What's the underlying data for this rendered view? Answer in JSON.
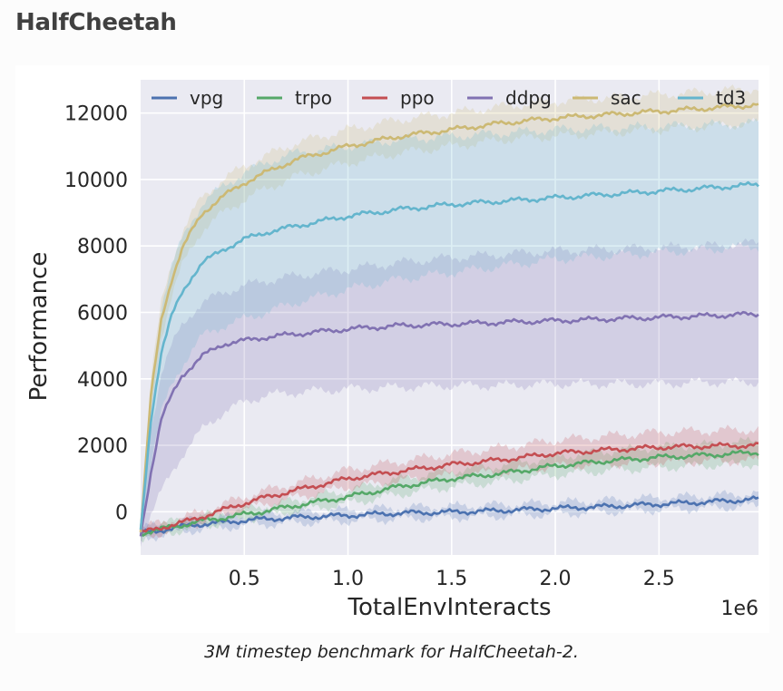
{
  "page": {
    "heading": "HalfCheetah",
    "caption": "3M timestep benchmark for HalfCheetah-2."
  },
  "chart_data": {
    "type": "line",
    "title": "",
    "xlabel": "TotalEnvInteracts",
    "ylabel": "Performance",
    "x_scale_label": "1e6",
    "xlim": [
      0,
      2.98
    ],
    "ylim": [
      -1300,
      13000
    ],
    "x_ticks": [
      0.5,
      1.0,
      1.5,
      2.0,
      2.5
    ],
    "x_tick_labels": [
      "0.5",
      "1.0",
      "1.5",
      "2.0",
      "2.5"
    ],
    "y_ticks": [
      0,
      2000,
      4000,
      6000,
      8000,
      10000,
      12000
    ],
    "y_tick_labels": [
      "0",
      "2000",
      "4000",
      "6000",
      "8000",
      "10000",
      "12000"
    ],
    "grid": true,
    "legend_position": "top",
    "x": [
      0,
      0.05,
      0.1,
      0.15,
      0.2,
      0.25,
      0.3,
      0.4,
      0.5,
      0.6,
      0.75,
      1.0,
      1.25,
      1.5,
      1.75,
      2.0,
      2.25,
      2.5,
      2.75,
      2.98
    ],
    "series": [
      {
        "name": "vpg",
        "color": "#4c72b0",
        "values": [
          -650,
          -600,
          -550,
          -500,
          -450,
          -400,
          -370,
          -320,
          -260,
          -220,
          -170,
          -110,
          -40,
          -10,
          40,
          100,
          160,
          230,
          300,
          380
        ],
        "lower": [
          -800,
          -750,
          -700,
          -650,
          -600,
          -550,
          -520,
          -470,
          -410,
          -370,
          -330,
          -270,
          -210,
          -170,
          -120,
          -60,
          0,
          60,
          120,
          180
        ],
        "upper": [
          -500,
          -450,
          -400,
          -350,
          -300,
          -250,
          -220,
          -170,
          -110,
          -70,
          -20,
          50,
          120,
          160,
          210,
          270,
          340,
          420,
          480,
          560
        ]
      },
      {
        "name": "trpo",
        "color": "#55a868",
        "values": [
          -650,
          -580,
          -520,
          -460,
          -400,
          -340,
          -270,
          -180,
          -80,
          20,
          190,
          450,
          760,
          1000,
          1160,
          1380,
          1530,
          1640,
          1710,
          1790
        ],
        "lower": [
          -800,
          -730,
          -670,
          -610,
          -550,
          -490,
          -420,
          -330,
          -230,
          -130,
          30,
          250,
          530,
          760,
          920,
          1110,
          1240,
          1330,
          1400,
          1450
        ],
        "upper": [
          -500,
          -430,
          -370,
          -310,
          -250,
          -190,
          -120,
          -30,
          70,
          170,
          350,
          650,
          990,
          1240,
          1400,
          1650,
          1820,
          1950,
          2020,
          2130
        ]
      },
      {
        "name": "ppo",
        "color": "#c44e52",
        "values": [
          -650,
          -560,
          -480,
          -400,
          -320,
          -240,
          -140,
          60,
          260,
          430,
          650,
          1000,
          1220,
          1420,
          1570,
          1760,
          1860,
          1940,
          1980,
          2000
        ],
        "lower": [
          -800,
          -710,
          -630,
          -550,
          -470,
          -390,
          -290,
          -110,
          70,
          230,
          430,
          740,
          930,
          1100,
          1210,
          1370,
          1440,
          1490,
          1520,
          1530
        ],
        "upper": [
          -500,
          -410,
          -330,
          -250,
          -170,
          -90,
          10,
          230,
          450,
          630,
          870,
          1260,
          1510,
          1740,
          1930,
          2150,
          2280,
          2390,
          2440,
          2470
        ]
      },
      {
        "name": "ddpg",
        "color": "#8172b2",
        "values": [
          -700,
          1200,
          2800,
          3500,
          4100,
          4400,
          4700,
          5050,
          5150,
          5250,
          5350,
          5500,
          5600,
          5650,
          5700,
          5750,
          5800,
          5850,
          5900,
          5950
        ],
        "lower": [
          -900,
          -100,
          600,
          1200,
          1700,
          2100,
          2500,
          3000,
          3300,
          3500,
          3600,
          3700,
          3750,
          3800,
          3800,
          3850,
          3850,
          3850,
          3900,
          3900
        ],
        "upper": [
          -500,
          2500,
          4200,
          5000,
          5600,
          6000,
          6300,
          6600,
          6800,
          6950,
          7100,
          7300,
          7500,
          7650,
          7750,
          7850,
          7900,
          7950,
          8000,
          8100
        ]
      },
      {
        "name": "sac",
        "color": "#ccb974",
        "values": [
          -600,
          3500,
          5800,
          7000,
          7900,
          8500,
          9000,
          9500,
          9900,
          10200,
          10600,
          11000,
          11300,
          11500,
          11700,
          11850,
          11950,
          12050,
          12150,
          12250
        ],
        "lower": [
          -800,
          3000,
          5300,
          6500,
          7400,
          8000,
          8500,
          9000,
          9400,
          9700,
          10100,
          10500,
          10800,
          11000,
          11200,
          11300,
          11400,
          11500,
          11600,
          11700
        ],
        "upper": [
          -400,
          4000,
          6300,
          7500,
          8400,
          9000,
          9500,
          10000,
          10400,
          10700,
          11100,
          11500,
          11800,
          12000,
          12200,
          12350,
          12450,
          12550,
          12650,
          12750
        ]
      },
      {
        "name": "td3",
        "color": "#64b5cd",
        "values": [
          -600,
          2800,
          4800,
          5900,
          6600,
          7100,
          7500,
          7900,
          8200,
          8400,
          8600,
          8900,
          9100,
          9250,
          9350,
          9450,
          9550,
          9650,
          9750,
          9850
        ],
        "lower": [
          -800,
          1500,
          3000,
          3800,
          4400,
          4900,
          5300,
          5600,
          5800,
          6000,
          6300,
          6700,
          7000,
          7200,
          7400,
          7600,
          7700,
          7800,
          7900,
          8000
        ],
        "upper": [
          -400,
          3800,
          6200,
          7400,
          8200,
          8800,
          9300,
          9800,
          10200,
          10500,
          10800,
          11000,
          11200,
          11300,
          11400,
          11500,
          11550,
          11600,
          11650,
          11700
        ]
      }
    ]
  }
}
